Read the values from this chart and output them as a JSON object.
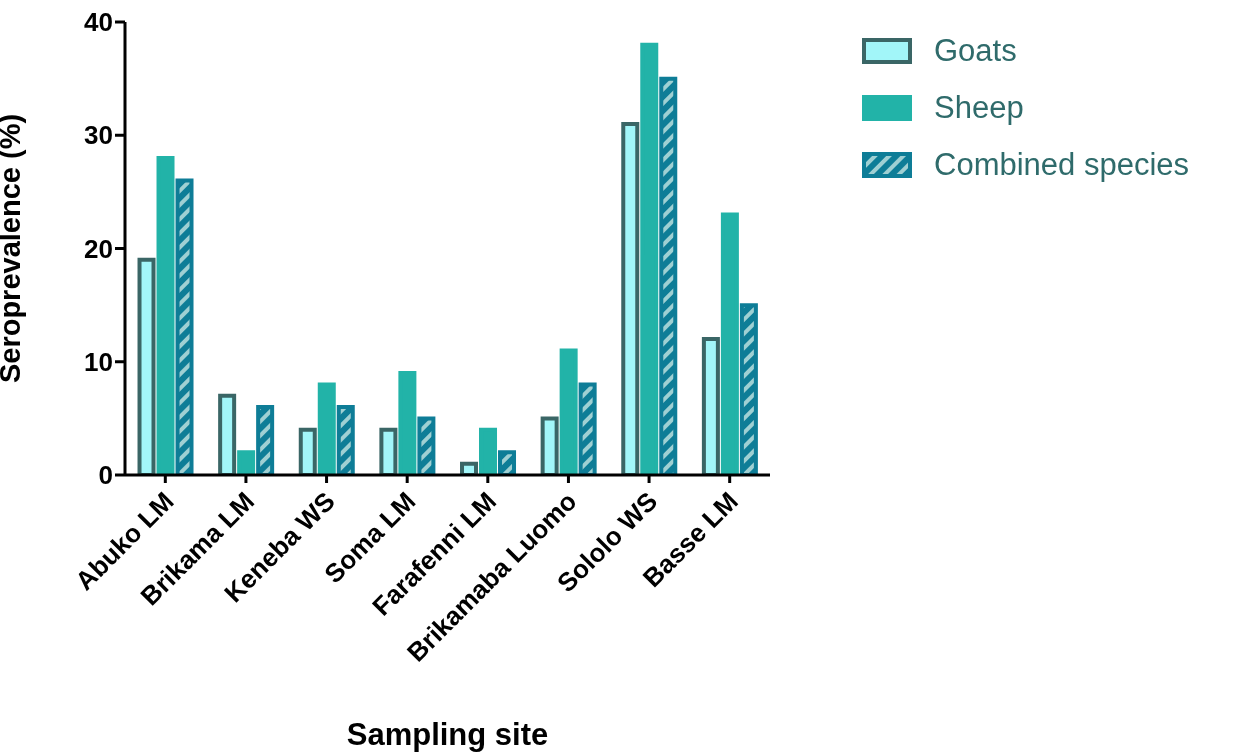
{
  "chart_data": {
    "type": "bar",
    "xlabel": "Sampling site",
    "ylabel": "Seroprevalence (%)",
    "categories": [
      "Abuko LM",
      "Brikama LM",
      "Keneba WS",
      "Soma LM",
      "Farafenni LM",
      "Brikamaba Luomo",
      "Sololo WS",
      "Basse LM"
    ],
    "series": [
      {
        "name": "Goats",
        "color": "#a2f6f9",
        "values": [
          19,
          7,
          4,
          4,
          1,
          5,
          31,
          12
        ]
      },
      {
        "name": "Sheep",
        "color": "#22b3a8",
        "values": [
          28,
          2,
          8,
          9,
          4,
          11,
          38,
          23
        ]
      },
      {
        "name": "Combined species",
        "color": "#0e7d97",
        "values": [
          26,
          6,
          6,
          5,
          2,
          8,
          35,
          15
        ]
      }
    ],
    "ylim": [
      0,
      40
    ],
    "yticks": [
      0,
      10,
      20,
      30,
      40
    ],
    "grid": false,
    "legend": "top right"
  }
}
